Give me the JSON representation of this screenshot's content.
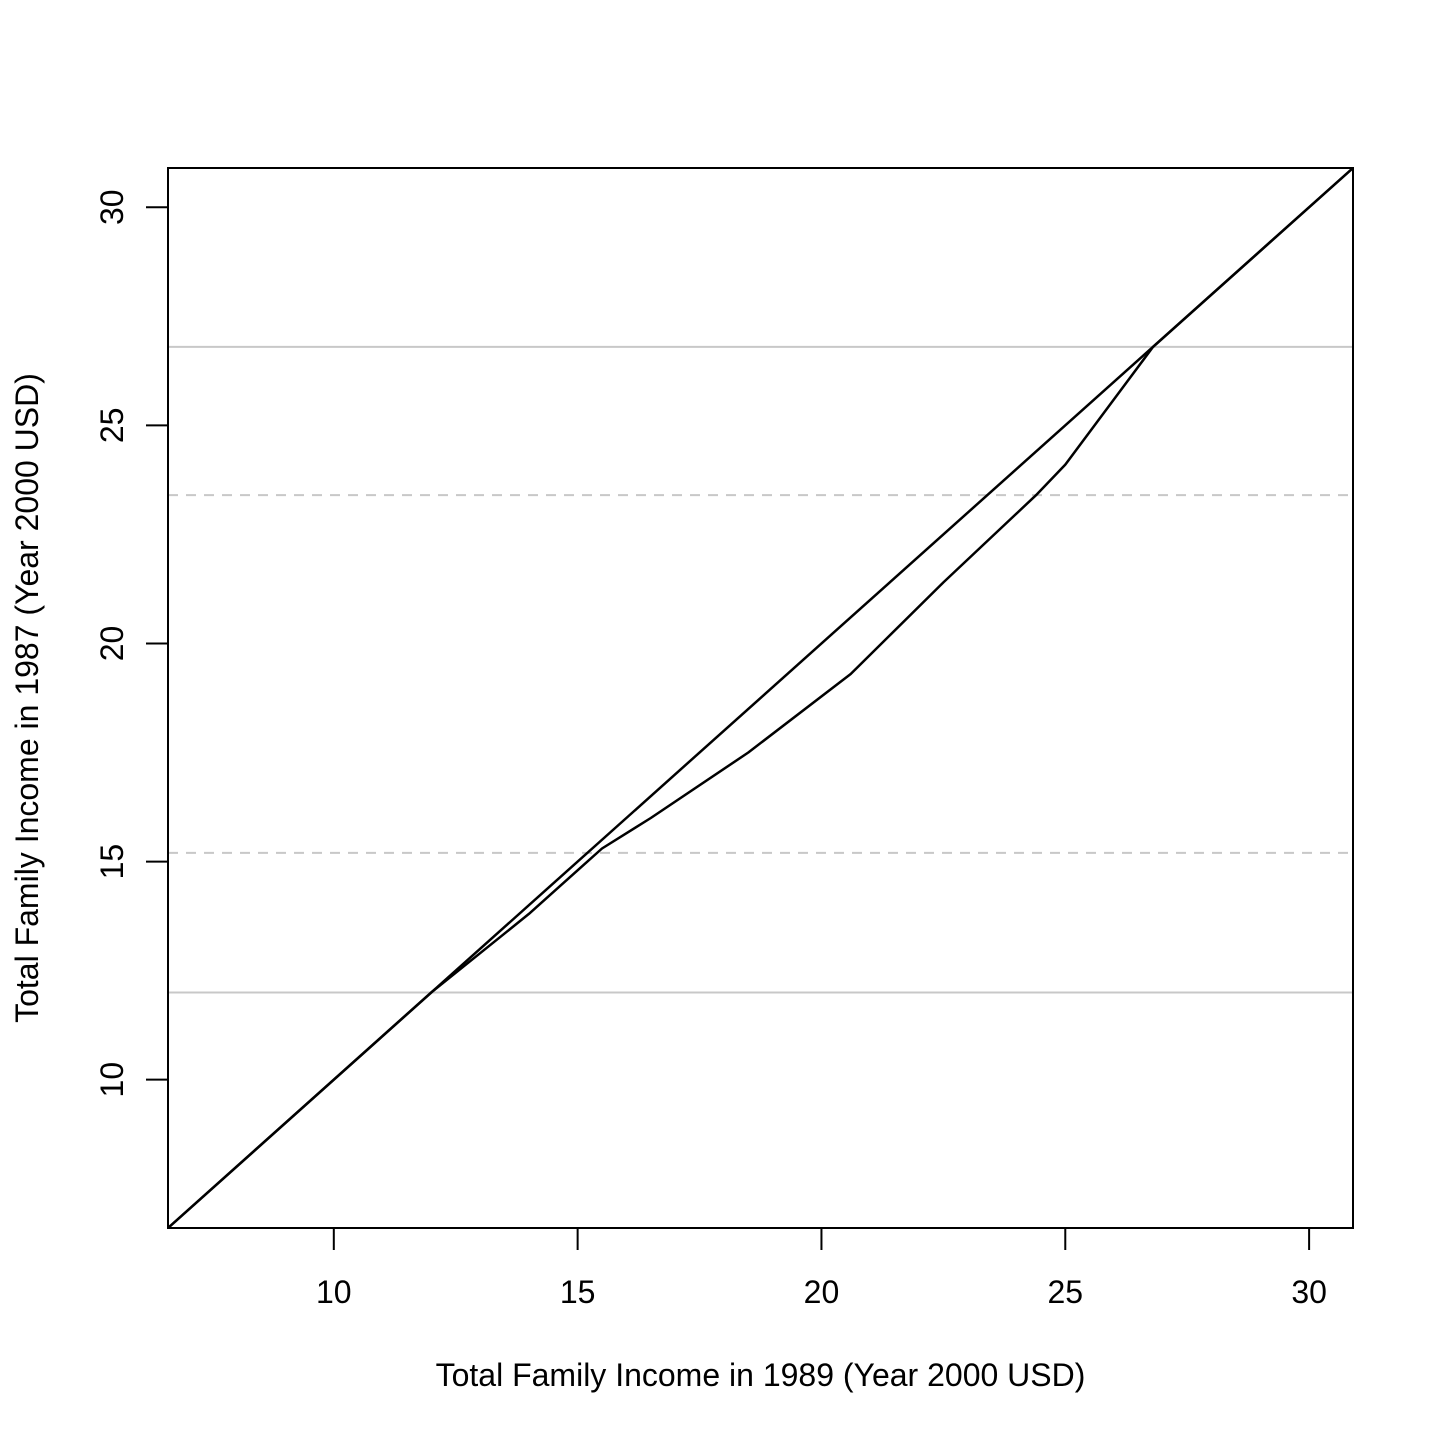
{
  "chart_data": {
    "type": "line",
    "title": "",
    "xlabel": "Total Family Income in 1989 (Year 2000 USD)",
    "ylabel": "Total Family Income in 1987 (Year 2000 USD)",
    "xlim": [
      6.6,
      30.9
    ],
    "ylim": [
      6.6,
      30.9
    ],
    "x_ticks": [
      10,
      15,
      20,
      25,
      30
    ],
    "y_ticks": [
      10,
      15,
      20,
      25,
      30
    ],
    "grid": false,
    "reference_lines": [
      {
        "y": 12.0,
        "style": "solid",
        "color": "#c8c8c8"
      },
      {
        "y": 15.2,
        "style": "dashed",
        "color": "#c8c8c8"
      },
      {
        "y": 23.4,
        "style": "dashed",
        "color": "#c8c8c8"
      },
      {
        "y": 26.8,
        "style": "solid",
        "color": "#c8c8c8"
      }
    ],
    "series": [
      {
        "style": "solid",
        "color": "#000000",
        "x": [
          6.6,
          30.9
        ],
        "y": [
          6.6,
          30.9
        ]
      },
      {
        "style": "solid",
        "color": "#000000",
        "x": [
          6.6,
          12.0,
          13.0,
          14.0,
          15.0,
          15.5,
          16.5,
          18.5,
          20.6,
          22.5,
          24.4,
          25.0,
          26.8,
          30.9
        ],
        "y": [
          6.6,
          12.0,
          12.9,
          13.8,
          14.8,
          15.3,
          16.0,
          17.5,
          19.3,
          21.4,
          23.4,
          24.1,
          26.8,
          30.9
        ]
      }
    ]
  }
}
